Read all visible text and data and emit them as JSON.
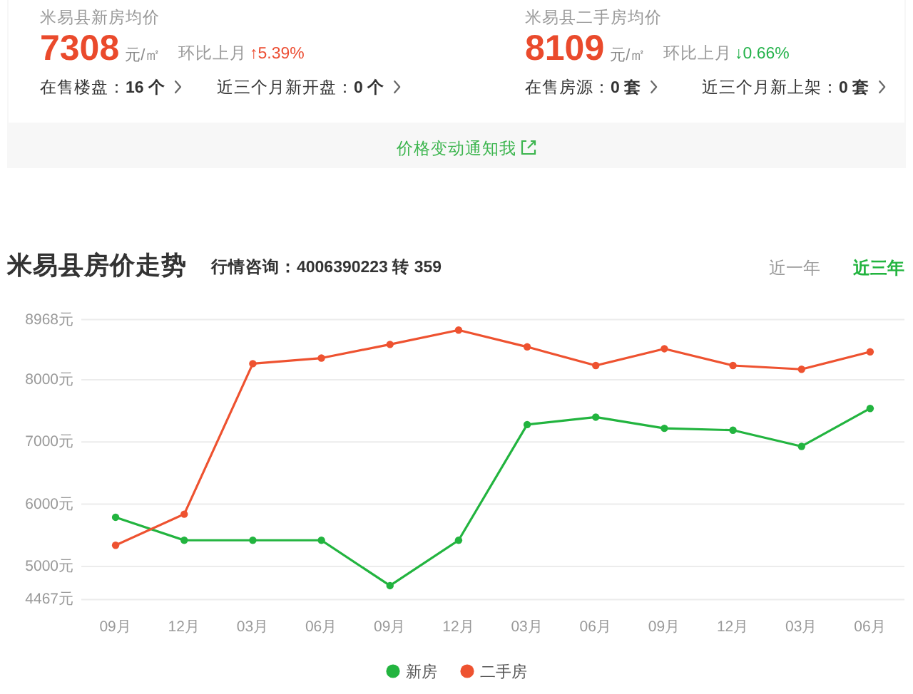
{
  "chart_data": [
    {
      "type": "other",
      "title": "米易县新房均价",
      "annotations": [
        "7308",
        "元/㎡",
        "环比上月",
        "↑5.39%",
        "在售楼盘：",
        "16 个",
        "近三个月新开盘：",
        "0 个"
      ]
    },
    {
      "type": "other",
      "title": "米易县二手房均价",
      "annotations": [
        "8109",
        "元/㎡",
        "环比上月",
        "↓0.66%",
        "在售房源：",
        "0 套",
        "近三个月新上架：",
        "0 套"
      ]
    },
    {
      "type": "other",
      "annotations": [
        "价格变动通知我"
      ]
    },
    {
      "type": "line",
      "title": "米易县房价走势",
      "subtitle": "行情咨询：4006390223 转 359",
      "annotations": [
        "近一年",
        "近三年"
      ],
      "categories": [
        "09月",
        "12月",
        "03月",
        "06月",
        "09月",
        "12月",
        "03月",
        "06月",
        "09月",
        "12月",
        "03月",
        "06月"
      ],
      "series": [
        {
          "name": "新房",
          "color": "#22b43f",
          "values": [
            5790,
            5420,
            5420,
            5420,
            4690,
            5420,
            7280,
            7400,
            7220,
            7190,
            6930,
            7540
          ]
        },
        {
          "name": "二手房",
          "color": "#ee5230",
          "values": [
            5340,
            5840,
            8260,
            8350,
            8570,
            8800,
            8530,
            8230,
            8500,
            8230,
            8170,
            8450
          ]
        }
      ],
      "ylim": [
        4467,
        8968
      ],
      "yticks": [
        {
          "value": 4467,
          "label": "4467元"
        },
        {
          "value": 5000,
          "label": "5000元"
        },
        {
          "value": 6000,
          "label": "6000元"
        },
        {
          "value": 7000,
          "label": "7000元"
        },
        {
          "value": 8000,
          "label": "8000元"
        },
        {
          "value": 8968,
          "label": "8968元"
        }
      ],
      "grid": "y",
      "legend": "bottom",
      "marker": "circle"
    }
  ]
}
